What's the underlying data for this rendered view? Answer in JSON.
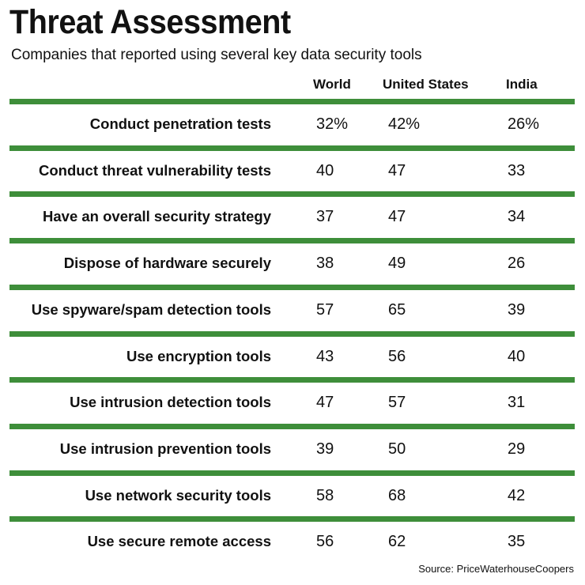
{
  "chart_data": {
    "type": "table",
    "title": "Threat Assessment",
    "subtitle": "Companies that reported using several key data security tools",
    "columns": [
      "World",
      "United States",
      "India"
    ],
    "rows": [
      {
        "label": "Conduct penetration tests",
        "values": [
          "32%",
          "42%",
          "26%"
        ]
      },
      {
        "label": "Conduct threat vulnerability tests",
        "values": [
          "40",
          "47",
          "33"
        ]
      },
      {
        "label": "Have an overall security strategy",
        "values": [
          "37",
          "47",
          "34"
        ]
      },
      {
        "label": "Dispose of hardware securely",
        "values": [
          "38",
          "49",
          "26"
        ]
      },
      {
        "label": "Use spyware/spam detection tools",
        "values": [
          "57",
          "65",
          "39"
        ]
      },
      {
        "label": "Use encryption tools",
        "values": [
          "43",
          "56",
          "40"
        ]
      },
      {
        "label": "Use intrusion detection tools",
        "values": [
          "47",
          "57",
          "31"
        ]
      },
      {
        "label": "Use intrusion prevention tools",
        "values": [
          "39",
          "50",
          "29"
        ]
      },
      {
        "label": "Use network security tools",
        "values": [
          "58",
          "68",
          "42"
        ]
      },
      {
        "label": "Use secure remote access",
        "values": [
          "56",
          "62",
          "35"
        ]
      }
    ],
    "source": "Source: PriceWaterhouseCoopers",
    "rule_color": "#3e8e3a"
  }
}
